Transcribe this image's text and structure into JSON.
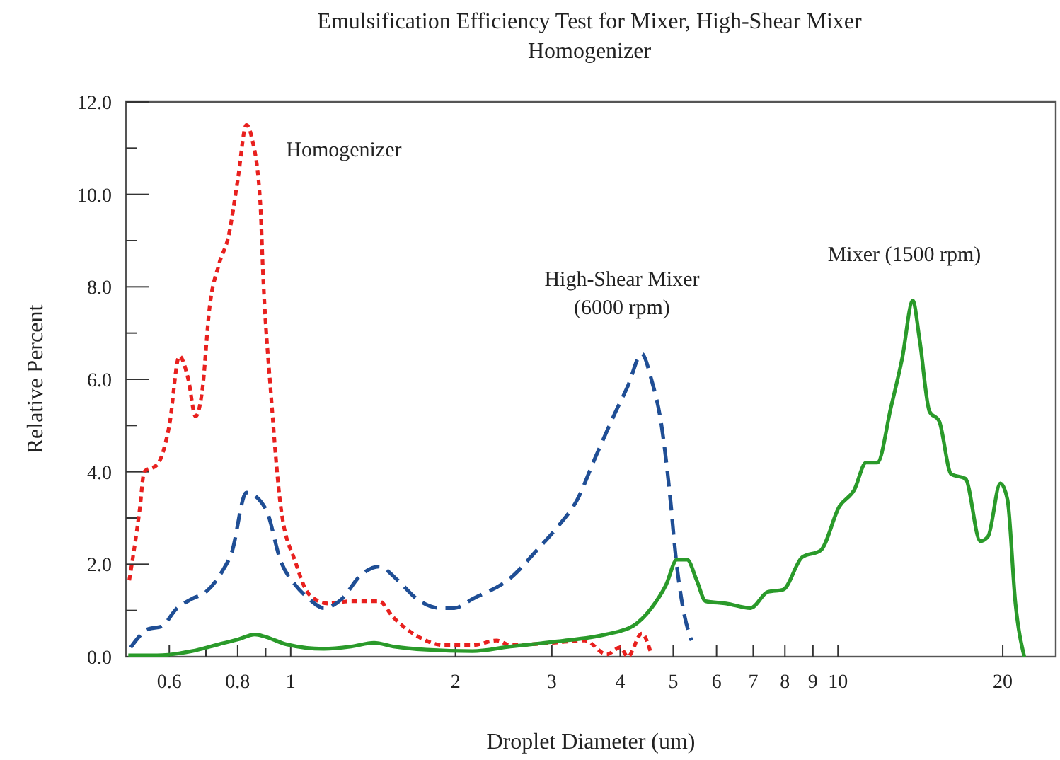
{
  "chart_data": {
    "type": "line",
    "title": "Emulsification Efficiency Test for Mixer,  High-Shear Mixer\nHomogenizer",
    "xlabel": "Droplet Diameter (um)",
    "ylabel": "Relative Percent",
    "log": "x",
    "grid": false,
    "marker": "none",
    "xlim": [
      0.5,
      25
    ],
    "xticks": [
      0.6,
      {
        "value": 0.7,
        "label": null
      },
      0.8,
      {
        "value": 0.9,
        "label": null
      },
      1,
      2,
      3,
      4,
      5,
      6,
      7,
      8,
      9,
      10,
      20
    ],
    "ylim": [
      0,
      12
    ],
    "yticks": [
      {
        "value": 0,
        "label": "0.0"
      },
      {
        "value": 1,
        "label": null
      },
      {
        "value": 2,
        "label": "2.0"
      },
      {
        "value": 3,
        "label": null
      },
      {
        "value": 4,
        "label": "4.0"
      },
      {
        "value": 5,
        "label": null
      },
      {
        "value": 6,
        "label": "6.0"
      },
      {
        "value": 7,
        "label": null
      },
      {
        "value": 8,
        "label": "8.0"
      },
      {
        "value": 9,
        "label": null
      },
      {
        "value": 10,
        "label": "10.0"
      },
      {
        "value": 11,
        "label": null
      },
      {
        "value": 12,
        "label": "12.0"
      }
    ],
    "series": [
      {
        "name": "Homogenizer",
        "color": "#e8201e",
        "line_style": "dotted",
        "x": [
          0.507,
          0.53,
          0.54,
          0.57,
          0.6,
          0.626,
          0.65,
          0.67,
          0.69,
          0.71,
          0.74,
          0.77,
          0.8,
          0.83,
          0.85,
          0.88,
          0.89,
          0.92,
          0.96,
          1.02,
          1.08,
          1.17,
          1.29,
          1.45,
          1.54,
          1.7,
          1.91,
          2.15,
          2.38,
          2.52,
          3.01,
          3.45,
          3.78,
          4.0,
          4.13,
          4.38,
          4.56
        ],
        "values": [
          1.65,
          3.2,
          4.0,
          4.15,
          5.0,
          6.5,
          6.0,
          5.2,
          5.8,
          7.5,
          8.5,
          9.1,
          10.3,
          11.5,
          11.2,
          9.8,
          8.3,
          5.7,
          3.2,
          2.05,
          1.35,
          1.15,
          1.2,
          1.2,
          0.85,
          0.45,
          0.25,
          0.25,
          0.35,
          0.25,
          0.3,
          0.35,
          0.05,
          0.2,
          0,
          0.5,
          0.05
        ]
      },
      {
        "name": "High-Shear Mixer\n(6000 rpm)",
        "color": "#1f4e95",
        "line_style": "dashed",
        "x": [
          0.51,
          0.55,
          0.58,
          0.62,
          0.66,
          0.7,
          0.75,
          0.78,
          0.83,
          0.9,
          0.96,
          1.02,
          1.08,
          1.15,
          1.24,
          1.34,
          1.45,
          1.57,
          1.7,
          1.88,
          1.99,
          2.15,
          2.52,
          2.84,
          3.07,
          3.34,
          3.6,
          3.89,
          4.13,
          4.38,
          4.56,
          4.76,
          4.94,
          5.05,
          5.21,
          5.4
        ],
        "values": [
          0.2,
          0.6,
          0.65,
          1.05,
          1.25,
          1.4,
          1.85,
          2.25,
          3.55,
          3.2,
          2.05,
          1.55,
          1.25,
          1.05,
          1.25,
          1.75,
          1.95,
          1.65,
          1.25,
          1.05,
          1.05,
          1.25,
          1.7,
          2.35,
          2.8,
          3.4,
          4.3,
          5.2,
          5.85,
          6.55,
          6.0,
          5.0,
          3.4,
          2.2,
          1.05,
          0.35
        ]
      },
      {
        "name": "Mixer (1500 rpm)",
        "color": "#2a9a2a",
        "line_style": "solid",
        "x": [
          0.505,
          0.57,
          0.66,
          0.74,
          0.8,
          0.86,
          0.9,
          0.98,
          1.15,
          1.29,
          1.42,
          1.54,
          1.77,
          2.15,
          2.52,
          3.07,
          3.76,
          4.23,
          4.56,
          4.85,
          5.08,
          5.3,
          5.52,
          5.73,
          6.25,
          6.92,
          7.44,
          7.94,
          8.6,
          9.3,
          10.06,
          10.7,
          11.26,
          11.8,
          12.5,
          13.1,
          13.7,
          14.1,
          14.7,
          15.3,
          16.1,
          17.1,
          18.2,
          18.8,
          19.8,
          20.4,
          21.1,
          21.9
        ],
        "values": [
          0.03,
          0.03,
          0.12,
          0.27,
          0.37,
          0.48,
          0.43,
          0.27,
          0.17,
          0.22,
          0.3,
          0.22,
          0.15,
          0.12,
          0.22,
          0.33,
          0.48,
          0.67,
          1.05,
          1.55,
          2.1,
          2.1,
          1.65,
          1.2,
          1.15,
          1.05,
          1.4,
          1.45,
          2.15,
          2.3,
          3.25,
          3.6,
          4.2,
          4.2,
          5.4,
          6.45,
          7.7,
          6.85,
          5.3,
          5.1,
          3.95,
          3.85,
          2.5,
          2.6,
          3.75,
          3.4,
          1.15,
          0
        ]
      }
    ]
  }
}
